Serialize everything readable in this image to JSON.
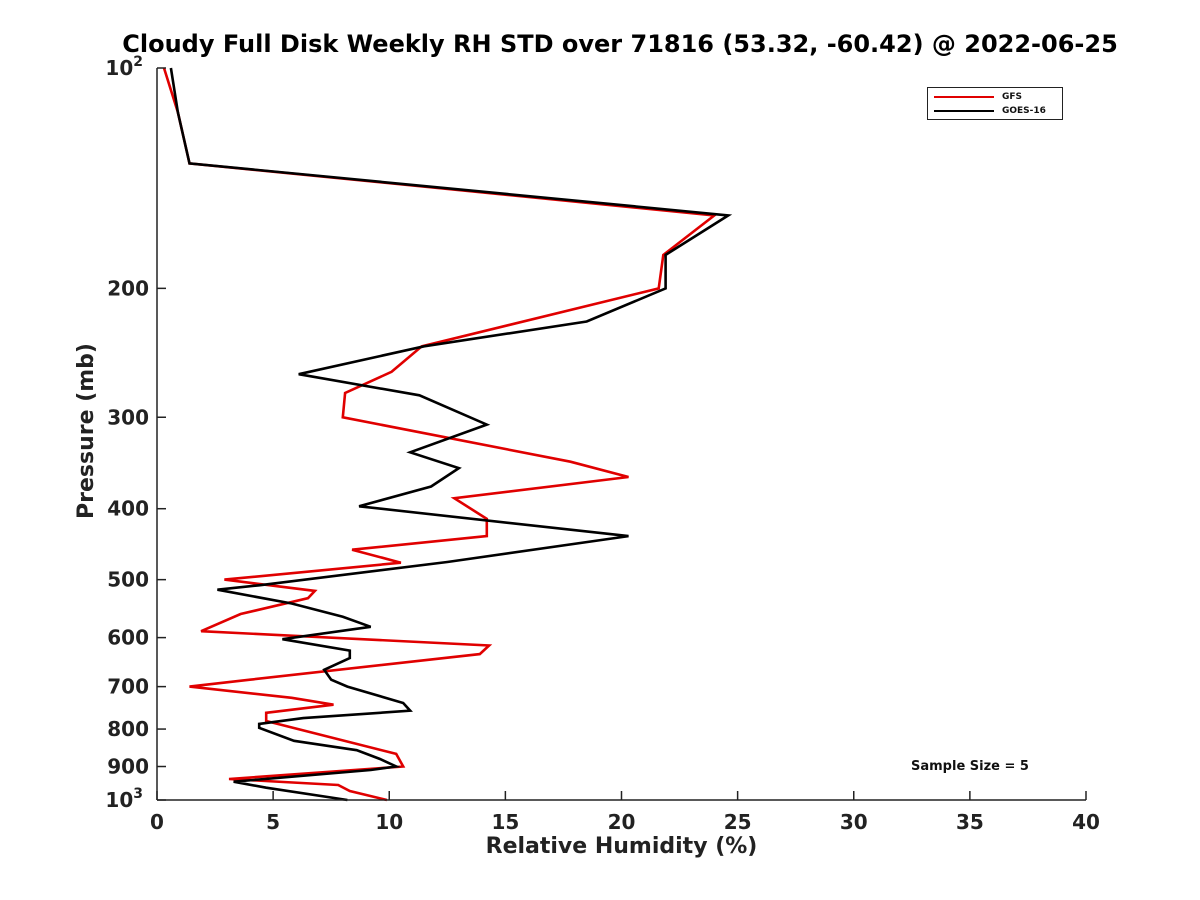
{
  "chart_data": {
    "type": "line",
    "title": "Cloudy Full Disk Weekly RH STD over 71816 (53.32, -60.42) @ 2022-06-25",
    "xlabel": "Relative Humidity (%)",
    "ylabel": "Pressure (mb)",
    "xlim": [
      0,
      40
    ],
    "ylim": [
      100,
      1000
    ],
    "y_scale": "log",
    "y_reversed": true,
    "grid": false,
    "legend_position": "top-right",
    "x_ticks": [
      {
        "value": 0,
        "label": "0"
      },
      {
        "value": 5,
        "label": "5"
      },
      {
        "value": 10,
        "label": "10"
      },
      {
        "value": 15,
        "label": "15"
      },
      {
        "value": 20,
        "label": "20"
      },
      {
        "value": 25,
        "label": "25"
      },
      {
        "value": 30,
        "label": "30"
      },
      {
        "value": 35,
        "label": "35"
      },
      {
        "value": 40,
        "label": "40"
      }
    ],
    "y_ticks": [
      {
        "value": 100,
        "label": "10",
        "sup": "2"
      },
      {
        "value": 200,
        "label": "200"
      },
      {
        "value": 300,
        "label": "300"
      },
      {
        "value": 400,
        "label": "400"
      },
      {
        "value": 500,
        "label": "500"
      },
      {
        "value": 600,
        "label": "600"
      },
      {
        "value": 700,
        "label": "700"
      },
      {
        "value": 800,
        "label": "800"
      },
      {
        "value": 900,
        "label": "900"
      },
      {
        "value": 1000,
        "label": "10",
        "sup": "3"
      }
    ],
    "series": [
      {
        "name": "GFS",
        "color": "#e00000",
        "points": [
          [
            0.3,
            100
          ],
          [
            0.9,
            115
          ],
          [
            1.4,
            135
          ],
          [
            24.0,
            159
          ],
          [
            21.8,
            180
          ],
          [
            21.6,
            200
          ],
          [
            11.4,
            240
          ],
          [
            10.1,
            260
          ],
          [
            8.1,
            278
          ],
          [
            8.0,
            300
          ],
          [
            17.8,
            345
          ],
          [
            20.3,
            362
          ],
          [
            12.8,
            387
          ],
          [
            14.2,
            413
          ],
          [
            14.2,
            436
          ],
          [
            8.4,
            455
          ],
          [
            10.5,
            474
          ],
          [
            2.9,
            500
          ],
          [
            6.8,
            518
          ],
          [
            6.5,
            530
          ],
          [
            3.6,
            557
          ],
          [
            1.9,
            588
          ],
          [
            14.3,
            615
          ],
          [
            13.9,
            632
          ],
          [
            4.0,
            685
          ],
          [
            1.4,
            700
          ],
          [
            5.8,
            725
          ],
          [
            7.6,
            741
          ],
          [
            4.7,
            760
          ],
          [
            4.7,
            780
          ],
          [
            7.4,
            820
          ],
          [
            10.3,
            865
          ],
          [
            10.6,
            900
          ],
          [
            3.1,
            936
          ],
          [
            7.8,
            954
          ],
          [
            8.3,
            972
          ],
          [
            9.9,
            1000
          ]
        ]
      },
      {
        "name": "GOES-16",
        "color": "#000000",
        "points": [
          [
            0.6,
            100
          ],
          [
            0.9,
            115
          ],
          [
            1.4,
            135
          ],
          [
            24.6,
            159
          ],
          [
            21.9,
            180
          ],
          [
            21.9,
            200
          ],
          [
            18.5,
            222
          ],
          [
            11.5,
            240
          ],
          [
            6.1,
            262
          ],
          [
            11.3,
            280
          ],
          [
            14.2,
            307
          ],
          [
            10.9,
            335
          ],
          [
            13.0,
            352
          ],
          [
            11.8,
            373
          ],
          [
            8.7,
            397
          ],
          [
            20.3,
            436
          ],
          [
            12.5,
            473
          ],
          [
            4.4,
            509
          ],
          [
            2.6,
            516
          ],
          [
            5.8,
            539
          ],
          [
            8.0,
            562
          ],
          [
            9.2,
            580
          ],
          [
            5.4,
            603
          ],
          [
            8.3,
            625
          ],
          [
            8.3,
            640
          ],
          [
            7.2,
            664
          ],
          [
            7.5,
            685
          ],
          [
            8.2,
            700
          ],
          [
            10.6,
            737
          ],
          [
            10.9,
            755
          ],
          [
            6.3,
            773
          ],
          [
            4.4,
            787
          ],
          [
            4.4,
            797
          ],
          [
            5.9,
            830
          ],
          [
            8.6,
            855
          ],
          [
            9.6,
            879
          ],
          [
            10.3,
            900
          ],
          [
            9.2,
            910
          ],
          [
            3.3,
            944
          ],
          [
            4.7,
            962
          ],
          [
            8.2,
            1000
          ]
        ]
      }
    ],
    "annotations": [
      "Sample Size = 5"
    ]
  }
}
